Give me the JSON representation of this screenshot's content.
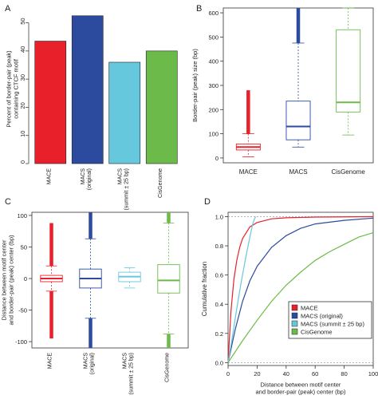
{
  "panels": {
    "A": {
      "letter": "A",
      "chart_data": {
        "type": "bar",
        "categories": [
          "MACE",
          "MACS\n(original)",
          "MACS\n(summit ± 25 bp)",
          "CisGenome"
        ],
        "values": [
          43.5,
          52.5,
          36.0,
          40.0
        ],
        "colors": [
          "#e8202a",
          "#2c4a9e",
          "#66c8dd",
          "#6cba4a"
        ],
        "ylabel": "Percent of border-pair (peak)\ncontaining CTCF motif",
        "ylim": [
          0,
          53
        ],
        "yticks": [
          0,
          10,
          20,
          30,
          40,
          50
        ]
      }
    },
    "B": {
      "letter": "B",
      "chart_data": {
        "type": "box",
        "categories": [
          "MACE",
          "MACS",
          "CisGenome"
        ],
        "colors": [
          "#e8202a",
          "#2c4a9e",
          "#6cba4a"
        ],
        "ylabel": "Border-pair (peak) size (bp)",
        "ylim": [
          -20,
          620
        ],
        "yticks": [
          0,
          100,
          200,
          300,
          400,
          500,
          600
        ],
        "boxes": [
          {
            "whisker_low": 5,
            "q1": 33,
            "median": 45,
            "q3": 58,
            "whisker_high": 100,
            "outlier_range": [
              100,
              280
            ]
          },
          {
            "whisker_low": 45,
            "q1": 75,
            "median": 130,
            "q3": 235,
            "whisker_high": 475,
            "outlier_range": [
              475,
              620
            ]
          },
          {
            "whisker_low": 95,
            "q1": 190,
            "median": 230,
            "q3": 530,
            "whisker_high": 620,
            "outlier_range": null
          }
        ]
      }
    },
    "C": {
      "letter": "C",
      "chart_data": {
        "type": "box",
        "categories": [
          "MACE",
          "MACS\n(original)",
          "MACS\n(summit ± 25 bp)",
          "CisGenome"
        ],
        "colors": [
          "#e8202a",
          "#2c4a9e",
          "#66c8dd",
          "#6cba4a"
        ],
        "ylabel": "Distance between motif center\nand border-pair (peak) center (bp)",
        "ylim": [
          -110,
          105
        ],
        "yticks": [
          -100,
          -50,
          0,
          50,
          100
        ],
        "boxes": [
          {
            "whisker_low": -20,
            "q1": -5,
            "median": 0,
            "q3": 5,
            "whisker_high": 20,
            "outlier_range": [
              -95,
              88
            ]
          },
          {
            "whisker_low": -63,
            "q1": -15,
            "median": 0,
            "q3": 15,
            "whisker_high": 63,
            "outlier_range": [
              -110,
              105
            ]
          },
          {
            "whisker_low": -15,
            "q1": -5,
            "median": 3,
            "q3": 10,
            "whisker_high": 17,
            "outlier_range": null
          },
          {
            "whisker_low": -88,
            "q1": -23,
            "median": -3,
            "q3": 22,
            "whisker_high": 88,
            "outlier_range": [
              -110,
              105
            ]
          }
        ]
      }
    },
    "D": {
      "letter": "D",
      "chart_data": {
        "type": "line",
        "xlabel": "Distance between motif center\nand border-pair (peak) center (bp)",
        "ylabel": "Cumulative fraction",
        "xlim": [
          0,
          100
        ],
        "ylim": [
          -0.02,
          1.03
        ],
        "xticks": [
          0,
          20,
          40,
          60,
          80,
          100
        ],
        "xticklabels": [
          "0",
          "20",
          "40",
          "60",
          "80",
          "100"
        ],
        "yticks": [
          0.0,
          0.2,
          0.4,
          0.6,
          0.8,
          1.0
        ],
        "yticklabels": [
          "0.0",
          "0.2",
          "0.4",
          "0.6",
          "0.8",
          "1.0"
        ],
        "series": [
          {
            "name": "MACE",
            "color": "#e8202a",
            "x": [
              0,
              2,
              4,
              6,
              8,
              10,
              15,
              20,
              30,
              40,
              60,
              100
            ],
            "y": [
              0,
              0.35,
              0.57,
              0.7,
              0.79,
              0.85,
              0.93,
              0.96,
              0.985,
              0.992,
              0.997,
              1.0
            ]
          },
          {
            "name": "MACS (original)",
            "color": "#2c4a9e",
            "x": [
              0,
              5,
              10,
              15,
              20,
              30,
              40,
              50,
              60,
              80,
              100
            ],
            "y": [
              0,
              0.23,
              0.42,
              0.56,
              0.66,
              0.79,
              0.87,
              0.92,
              0.95,
              0.975,
              0.99
            ]
          },
          {
            "name": "MACS (summit ± 25 bp)",
            "color": "#66c8dd",
            "x": [
              0,
              3,
              6,
              9,
              12,
              15,
              17,
              18,
              19
            ],
            "y": [
              0,
              0.18,
              0.37,
              0.55,
              0.71,
              0.86,
              0.95,
              0.98,
              1.0
            ]
          },
          {
            "name": "CisGenome",
            "color": "#6cba4a",
            "x": [
              0,
              10,
              20,
              30,
              40,
              50,
              60,
              70,
              80,
              90,
              100
            ],
            "y": [
              0,
              0.15,
              0.29,
              0.42,
              0.53,
              0.62,
              0.7,
              0.76,
              0.81,
              0.86,
              0.89
            ]
          }
        ],
        "reference_lines_y": [
          0.0,
          1.0
        ],
        "legend_position": "lower-right"
      }
    }
  }
}
